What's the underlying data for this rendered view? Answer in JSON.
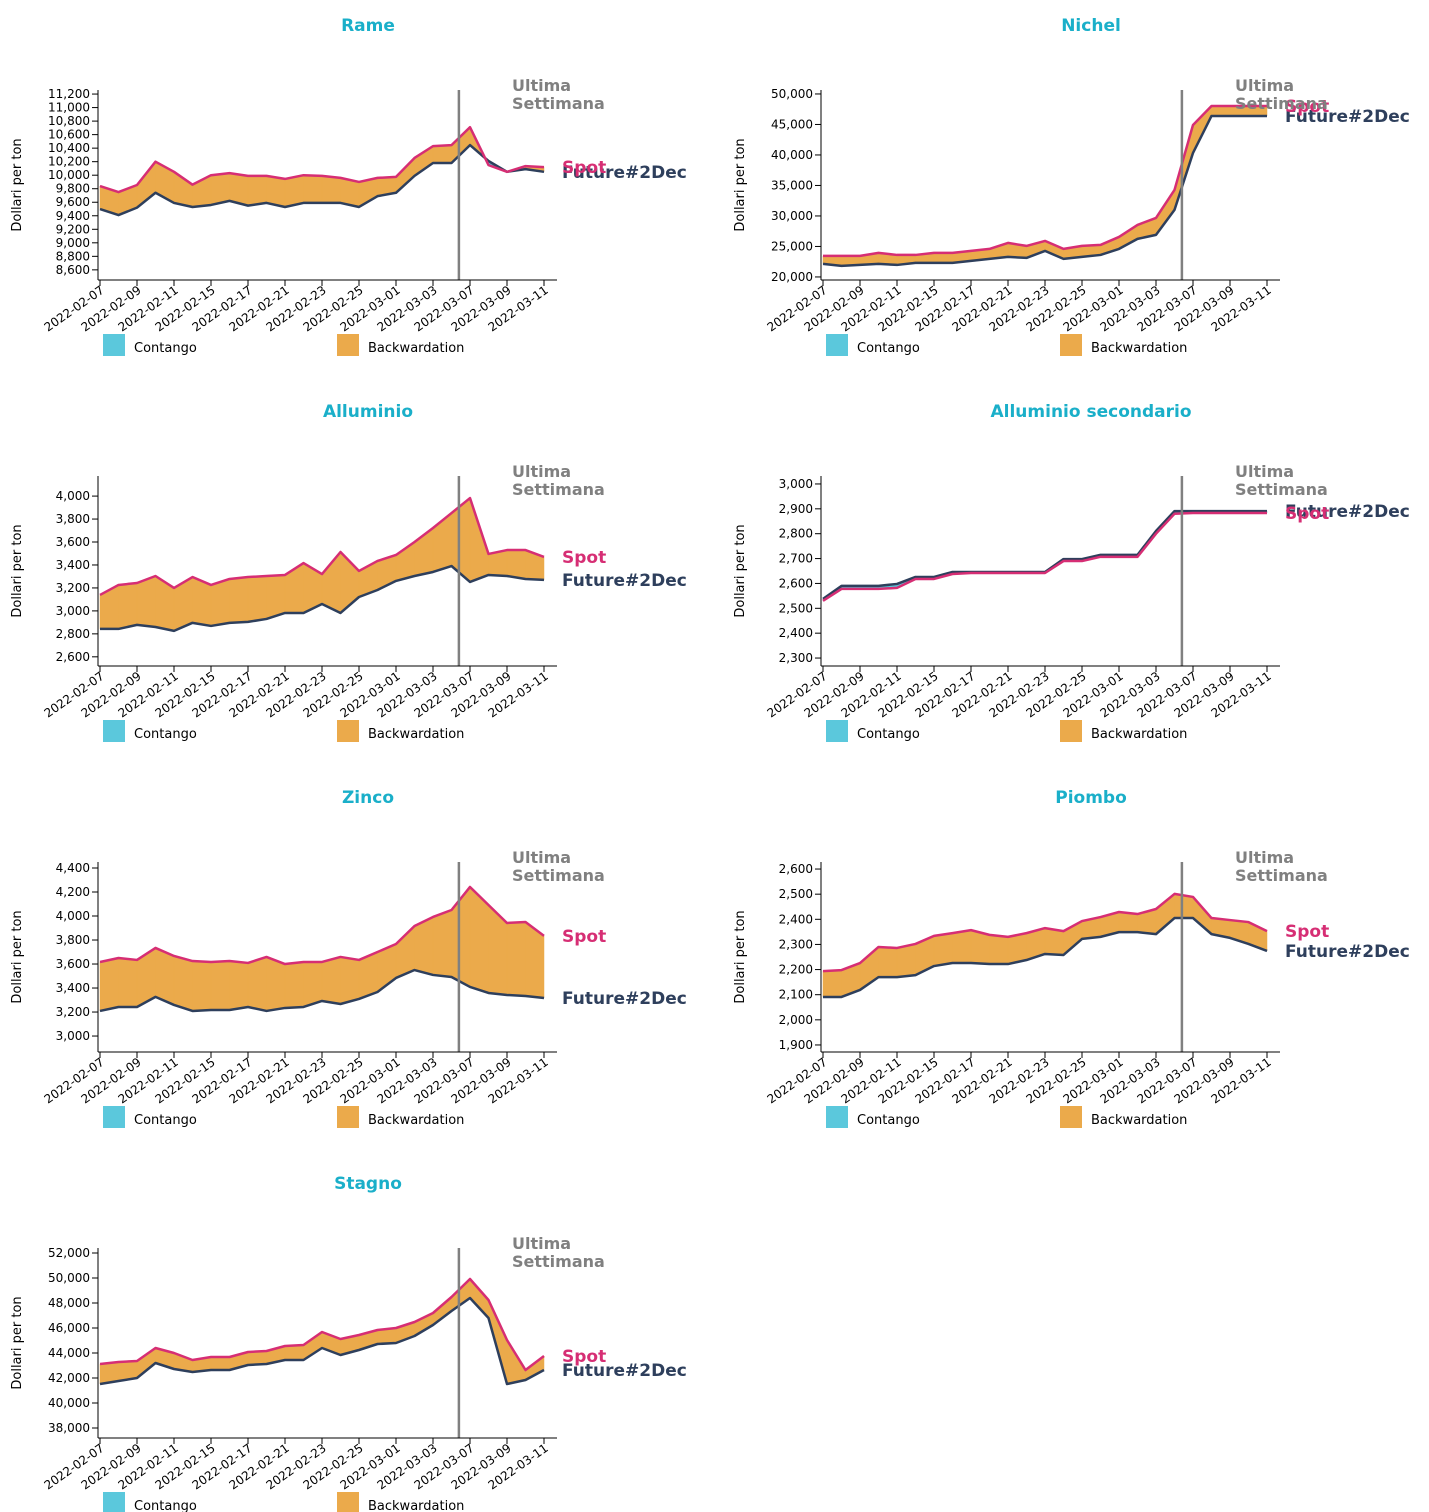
{
  "chart_data": [
    {
      "type": "area-between",
      "title": "Rame",
      "y_label": "Dollari per ton",
      "annotation": [
        "Ultima",
        "Settimana"
      ],
      "categories": [
        "2022-02-07",
        null,
        "2022-02-09",
        null,
        "2022-02-11",
        null,
        "2022-02-15",
        null,
        "2022-02-17",
        null,
        "2022-02-21",
        null,
        "2022-02-23",
        null,
        "2022-02-25",
        null,
        "2022-03-01",
        null,
        "2022-03-03",
        null,
        "2022-03-07",
        null,
        "2022-03-09",
        null,
        "2022-03-11"
      ],
      "series": [
        {
          "name": "Spot",
          "color": "#d62e74",
          "values": [
            9840,
            9750,
            9855,
            10200,
            10050,
            9860,
            10000,
            10030,
            9990,
            9990,
            9945,
            10000,
            9990,
            9960,
            9900,
            9960,
            9975,
            10255,
            10430,
            10445,
            10710,
            10150,
            10050,
            10135,
            10120
          ]
        },
        {
          "name": "Future#2Dec",
          "color": "#2e3f5c",
          "values": [
            9500,
            9410,
            9520,
            9740,
            9590,
            9530,
            9560,
            9620,
            9550,
            9590,
            9530,
            9590,
            9590,
            9590,
            9530,
            9690,
            9740,
            9990,
            10180,
            10180,
            10445,
            10210,
            10050,
            10090,
            10050
          ]
        }
      ],
      "legend": [
        {
          "name": "Contango",
          "color": "#5bc8dc"
        },
        {
          "name": "Backwardation",
          "color": "#ebaa4b"
        }
      ],
      "ylim": [
        8450,
        11260
      ],
      "yticks": [
        {
          "value": 8600,
          "label": "8,600"
        },
        {
          "value": 8800,
          "label": "8,800"
        },
        {
          "value": 9000,
          "label": "9,000"
        },
        {
          "value": 9200,
          "label": "9,200"
        },
        {
          "value": 9400,
          "label": "9,400"
        },
        {
          "value": 9600,
          "label": "9,600"
        },
        {
          "value": 9800,
          "label": "9,800"
        },
        {
          "value": 10000,
          "label": "10,000"
        },
        {
          "value": 10200,
          "label": "10,200"
        },
        {
          "value": 10400,
          "label": "10,400"
        },
        {
          "value": 10600,
          "label": "10,600"
        },
        {
          "value": 10800,
          "label": "10,800"
        },
        {
          "value": 11000,
          "label": "11,000"
        },
        {
          "value": 11200,
          "label": "11,200"
        }
      ]
    },
    {
      "type": "area-between",
      "title": "Nichel",
      "y_label": "Dollari per ton",
      "annotation": [
        "Ultima",
        "Settimana"
      ],
      "categories": [
        "2022-02-07",
        null,
        "2022-02-09",
        null,
        "2022-02-11",
        null,
        "2022-02-15",
        null,
        "2022-02-17",
        null,
        "2022-02-21",
        null,
        "2022-02-23",
        null,
        "2022-02-25",
        null,
        "2022-03-01",
        null,
        "2022-03-03",
        null,
        "2022-03-07",
        null,
        "2022-03-09",
        null,
        "2022-03-11"
      ],
      "series": [
        {
          "name": "Spot",
          "color": "#d62e74",
          "values": [
            23450,
            23450,
            23450,
            23940,
            23610,
            23610,
            23940,
            23940,
            24270,
            24600,
            25580,
            25090,
            25910,
            24600,
            25090,
            25250,
            26560,
            28530,
            29680,
            34270,
            44920,
            48030,
            48030,
            48030,
            48030
          ]
        },
        {
          "name": "Future#2Dec",
          "color": "#2e3f5c",
          "values": [
            22140,
            21810,
            21970,
            22140,
            21970,
            22300,
            22300,
            22300,
            22630,
            22960,
            23290,
            23120,
            24270,
            22960,
            23290,
            23610,
            24600,
            26240,
            26900,
            30990,
            40330,
            46390,
            46390,
            46390,
            46390
          ]
        }
      ],
      "legend": [
        {
          "name": "Contango",
          "color": "#5bc8dc"
        },
        {
          "name": "Backwardation",
          "color": "#ebaa4b"
        }
      ],
      "ylim": [
        19500,
        50650
      ],
      "yticks": [
        {
          "value": 20000,
          "label": "20,000"
        },
        {
          "value": 25000,
          "label": "25,000"
        },
        {
          "value": 30000,
          "label": "30,000"
        },
        {
          "value": 35000,
          "label": "35,000"
        },
        {
          "value": 40000,
          "label": "40,000"
        },
        {
          "value": 45000,
          "label": "45,000"
        },
        {
          "value": 50000,
          "label": "50,000"
        }
      ]
    },
    {
      "type": "area-between",
      "title": "Alluminio",
      "y_label": "Dollari per ton",
      "annotation": [
        "Ultima",
        "Settimana"
      ],
      "categories": [
        "2022-02-07",
        null,
        "2022-02-09",
        null,
        "2022-02-11",
        null,
        "2022-02-15",
        null,
        "2022-02-17",
        null,
        "2022-02-21",
        null,
        "2022-02-23",
        null,
        "2022-02-25",
        null,
        "2022-03-01",
        null,
        "2022-03-03",
        null,
        "2022-03-07",
        null,
        "2022-03-09",
        null,
        "2022-03-11"
      ],
      "series": [
        {
          "name": "Spot",
          "color": "#d62e74",
          "values": [
            3139,
            3226,
            3243,
            3304,
            3200,
            3295,
            3226,
            3278,
            3295,
            3304,
            3313,
            3417,
            3321,
            3513,
            3348,
            3435,
            3487,
            3600,
            3722,
            3852,
            3983,
            3496,
            3530,
            3530,
            3470
          ]
        },
        {
          "name": "Future#2Dec",
          "color": "#2e3f5c",
          "values": [
            2843,
            2843,
            2878,
            2860,
            2826,
            2896,
            2869,
            2896,
            2904,
            2930,
            2982,
            2982,
            3060,
            2982,
            3121,
            3182,
            3261,
            3304,
            3339,
            3391,
            3252,
            3313,
            3304,
            3278,
            3270
          ]
        }
      ],
      "legend": [
        {
          "name": "Contango",
          "color": "#5bc8dc"
        },
        {
          "name": "Backwardation",
          "color": "#ebaa4b"
        }
      ],
      "ylim": [
        2520,
        4175
      ],
      "yticks": [
        {
          "value": 2600,
          "label": "2,600"
        },
        {
          "value": 2800,
          "label": "2,800"
        },
        {
          "value": 3000,
          "label": "3,000"
        },
        {
          "value": 3200,
          "label": "3,200"
        },
        {
          "value": 3400,
          "label": "3,400"
        },
        {
          "value": 3600,
          "label": "3,600"
        },
        {
          "value": 3800,
          "label": "3,800"
        },
        {
          "value": 4000,
          "label": "4,000"
        }
      ]
    },
    {
      "type": "area-between",
      "title": "Alluminio secondario",
      "y_label": "Dollari per ton",
      "annotation": [
        "Ultima",
        "Settimana"
      ],
      "categories": [
        "2022-02-07",
        null,
        "2022-02-09",
        null,
        "2022-02-11",
        null,
        "2022-02-15",
        null,
        "2022-02-17",
        null,
        "2022-02-21",
        null,
        "2022-02-23",
        null,
        "2022-02-25",
        null,
        "2022-03-01",
        null,
        "2022-03-03",
        null,
        "2022-03-07",
        null,
        "2022-03-09",
        null,
        "2022-03-11"
      ],
      "series": [
        {
          "name": "Spot",
          "color": "#d62e74",
          "values": [
            2530,
            2578,
            2578,
            2578,
            2582,
            2618,
            2618,
            2638,
            2642,
            2642,
            2642,
            2642,
            2642,
            2690,
            2690,
            2707,
            2707,
            2707,
            2800,
            2880,
            2883,
            2883,
            2883,
            2883,
            2883
          ]
        },
        {
          "name": "Future#2Dec",
          "color": "#2e3f5c",
          "values": [
            2538,
            2590,
            2590,
            2590,
            2598,
            2626,
            2626,
            2646,
            2646,
            2646,
            2646,
            2646,
            2646,
            2698,
            2698,
            2715,
            2715,
            2715,
            2811,
            2891,
            2891,
            2891,
            2891,
            2891,
            2891
          ]
        }
      ],
      "legend": [
        {
          "name": "Contango",
          "color": "#5bc8dc"
        },
        {
          "name": "Backwardation",
          "color": "#ebaa4b"
        }
      ],
      "ylim": [
        2268,
        3032
      ],
      "yticks": [
        {
          "value": 2300,
          "label": "2,300"
        },
        {
          "value": 2400,
          "label": "2,400"
        },
        {
          "value": 2500,
          "label": "2,500"
        },
        {
          "value": 2600,
          "label": "2,600"
        },
        {
          "value": 2700,
          "label": "2,700"
        },
        {
          "value": 2800,
          "label": "2,800"
        },
        {
          "value": 2900,
          "label": "2,900"
        },
        {
          "value": 3000,
          "label": "3,000"
        }
      ]
    },
    {
      "type": "area-between",
      "title": "Zinco",
      "y_label": "Dollari per ton",
      "annotation": [
        "Ultima",
        "Settimana"
      ],
      "categories": [
        "2022-02-07",
        null,
        "2022-02-09",
        null,
        "2022-02-11",
        null,
        "2022-02-15",
        null,
        "2022-02-17",
        null,
        "2022-02-21",
        null,
        "2022-02-23",
        null,
        "2022-02-25",
        null,
        "2022-03-01",
        null,
        "2022-03-03",
        null,
        "2022-03-07",
        null,
        "2022-03-09",
        null,
        "2022-03-11"
      ],
      "series": [
        {
          "name": "Spot",
          "color": "#d62e74",
          "values": [
            3617,
            3650,
            3634,
            3734,
            3667,
            3625,
            3617,
            3625,
            3609,
            3659,
            3600,
            3617,
            3617,
            3659,
            3634,
            3700,
            3767,
            3917,
            3992,
            4050,
            4242,
            4092,
            3942,
            3950,
            3834
          ]
        },
        {
          "name": "Future#2Dec",
          "color": "#2e3f5c",
          "values": [
            3209,
            3242,
            3242,
            3326,
            3259,
            3209,
            3217,
            3217,
            3242,
            3209,
            3234,
            3242,
            3292,
            3267,
            3309,
            3367,
            3484,
            3550,
            3509,
            3492,
            3409,
            3359,
            3342,
            3334,
            3317
          ]
        }
      ],
      "legend": [
        {
          "name": "Contango",
          "color": "#5bc8dc"
        },
        {
          "name": "Backwardation",
          "color": "#ebaa4b"
        }
      ],
      "ylim": [
        2867,
        4450
      ],
      "yticks": [
        {
          "value": 3000,
          "label": "3,000"
        },
        {
          "value": 3200,
          "label": "3,200"
        },
        {
          "value": 3400,
          "label": "3,400"
        },
        {
          "value": 3600,
          "label": "3,600"
        },
        {
          "value": 3800,
          "label": "3,800"
        },
        {
          "value": 4000,
          "label": "4,000"
        },
        {
          "value": 4200,
          "label": "4,200"
        },
        {
          "value": 4400,
          "label": "4,400"
        }
      ]
    },
    {
      "type": "area-between",
      "title": "Piombo",
      "y_label": "Dollari per ton",
      "annotation": [
        "Ultima",
        "Settimana"
      ],
      "categories": [
        "2022-02-07",
        null,
        "2022-02-09",
        null,
        "2022-02-11",
        null,
        "2022-02-15",
        null,
        "2022-02-17",
        null,
        "2022-02-21",
        null,
        "2022-02-23",
        null,
        "2022-02-25",
        null,
        "2022-03-01",
        null,
        "2022-03-03",
        null,
        "2022-03-07",
        null,
        "2022-03-09",
        null,
        "2022-03-11"
      ],
      "series": [
        {
          "name": "Spot",
          "color": "#d62e74",
          "values": [
            2194,
            2198,
            2226,
            2290,
            2286,
            2302,
            2334,
            2345,
            2357,
            2338,
            2330,
            2345,
            2365,
            2353,
            2393,
            2409,
            2429,
            2421,
            2441,
            2501,
            2489,
            2405,
            2397,
            2389,
            2353
          ]
        },
        {
          "name": "Future#2Dec",
          "color": "#2e3f5c",
          "values": [
            2091,
            2091,
            2119,
            2170,
            2170,
            2178,
            2214,
            2226,
            2226,
            2222,
            2222,
            2238,
            2262,
            2258,
            2322,
            2330,
            2349,
            2349,
            2341,
            2405,
            2405,
            2341,
            2326,
            2302,
            2274
          ]
        }
      ],
      "legend": [
        {
          "name": "Contango",
          "color": "#5bc8dc"
        },
        {
          "name": "Backwardation",
          "color": "#ebaa4b"
        }
      ],
      "ylim": [
        1872,
        2628
      ],
      "yticks": [
        {
          "value": 1900,
          "label": "1,900"
        },
        {
          "value": 2000,
          "label": "2,000"
        },
        {
          "value": 2100,
          "label": "2,100"
        },
        {
          "value": 2200,
          "label": "2,200"
        },
        {
          "value": 2300,
          "label": "2,300"
        },
        {
          "value": 2400,
          "label": "2,400"
        },
        {
          "value": 2500,
          "label": "2,500"
        },
        {
          "value": 2600,
          "label": "2,600"
        }
      ]
    },
    {
      "type": "area-between",
      "title": "Stagno",
      "y_label": "Dollari per ton",
      "annotation": [
        "Ultima",
        "Settimana"
      ],
      "categories": [
        "2022-02-07",
        null,
        "2022-02-09",
        null,
        "2022-02-11",
        null,
        "2022-02-15",
        null,
        "2022-02-17",
        null,
        "2022-02-21",
        null,
        "2022-02-23",
        null,
        "2022-02-25",
        null,
        "2022-03-01",
        null,
        "2022-03-03",
        null,
        "2022-03-07",
        null,
        "2022-03-09",
        null,
        "2022-03-11"
      ],
      "series": [
        {
          "name": "Spot",
          "color": "#d62e74",
          "values": [
            43120,
            43280,
            43360,
            44400,
            44000,
            43440,
            43680,
            43680,
            44080,
            44160,
            44560,
            44640,
            45680,
            45120,
            45440,
            45840,
            46000,
            46480,
            47200,
            48480,
            49920,
            48240,
            45040,
            42640,
            43760
          ]
        },
        {
          "name": "Future#2Dec",
          "color": "#2e3f5c",
          "values": [
            41520,
            41760,
            42000,
            43200,
            42720,
            42480,
            42640,
            42640,
            43040,
            43120,
            43440,
            43440,
            44400,
            43840,
            44240,
            44720,
            44800,
            45360,
            46240,
            47360,
            48400,
            46800,
            41520,
            41840,
            42640
          ]
        }
      ],
      "legend": [
        {
          "name": "Contango",
          "color": "#5bc8dc"
        },
        {
          "name": "Backwardation",
          "color": "#ebaa4b"
        }
      ],
      "ylim": [
        37200,
        52400
      ],
      "yticks": [
        {
          "value": 38000,
          "label": "38,000"
        },
        {
          "value": 40000,
          "label": "40,000"
        },
        {
          "value": 42000,
          "label": "42,000"
        },
        {
          "value": 44000,
          "label": "44,000"
        },
        {
          "value": 46000,
          "label": "46,000"
        },
        {
          "value": 48000,
          "label": "48,000"
        },
        {
          "value": 50000,
          "label": "50,000"
        },
        {
          "value": 52000,
          "label": "52,000"
        }
      ]
    }
  ]
}
